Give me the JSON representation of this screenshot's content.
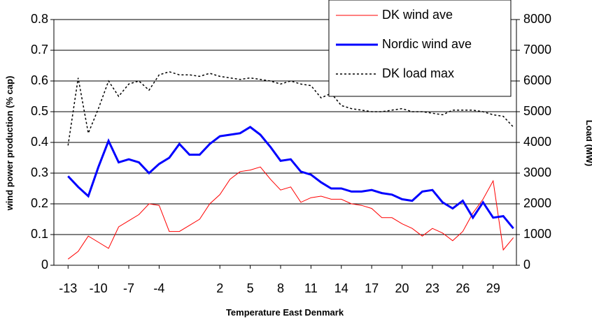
{
  "chart_data": {
    "type": "line",
    "x_label": "Temperature East Denmark",
    "y_label": "wind power production (% cap)",
    "y2_label": "Load (MW)",
    "x": [
      -13,
      -12,
      -11,
      -10,
      -9,
      -8,
      -7,
      -6,
      -5,
      -4,
      -3,
      -2,
      -1,
      0,
      1,
      2,
      3,
      4,
      5,
      6,
      7,
      8,
      9,
      10,
      11,
      12,
      13,
      14,
      15,
      16,
      17,
      18,
      19,
      20,
      21,
      22,
      23,
      24,
      25,
      26,
      27,
      28,
      29,
      30,
      31
    ],
    "xlim": [
      -14.4,
      31.3
    ],
    "xticks": [
      -13,
      -10,
      -7,
      -4,
      2,
      5,
      8,
      11,
      14,
      17,
      20,
      23,
      26,
      29
    ],
    "ylim": [
      0,
      0.8
    ],
    "yticks": [
      0,
      0.1,
      0.2,
      0.3,
      0.4,
      0.5,
      0.6,
      0.7,
      0.8
    ],
    "y2lim": [
      0,
      8000
    ],
    "y2ticks": [
      0,
      1000,
      2000,
      3000,
      4000,
      5000,
      6000,
      7000,
      8000
    ],
    "grid": true,
    "legend": "top-right",
    "series": [
      {
        "name": "DK wind ave",
        "color": "#ff0000",
        "width": 1,
        "dash": false,
        "values": [
          0.02,
          0.045,
          0.095,
          0.075,
          0.055,
          0.125,
          0.145,
          0.165,
          0.2,
          0.195,
          0.11,
          0.11,
          0.13,
          0.15,
          0.2,
          0.23,
          0.28,
          0.305,
          0.31,
          0.32,
          0.28,
          0.245,
          0.255,
          0.205,
          0.22,
          0.225,
          0.215,
          0.215,
          0.2,
          0.195,
          0.185,
          0.155,
          0.155,
          0.135,
          0.12,
          0.095,
          0.12,
          0.105,
          0.08,
          0.11,
          0.17,
          0.215,
          0.275,
          0.05,
          0.09
        ]
      },
      {
        "name": "Nordic wind ave",
        "color": "#0000ff",
        "width": 3,
        "dash": false,
        "values": [
          0.29,
          0.255,
          0.225,
          0.32,
          0.405,
          0.335,
          0.345,
          0.335,
          0.3,
          0.33,
          0.35,
          0.395,
          0.36,
          0.36,
          0.395,
          0.42,
          0.425,
          0.43,
          0.45,
          0.425,
          0.385,
          0.34,
          0.345,
          0.305,
          0.295,
          0.27,
          0.25,
          0.25,
          0.24,
          0.24,
          0.245,
          0.235,
          0.23,
          0.215,
          0.21,
          0.24,
          0.245,
          0.205,
          0.185,
          0.21,
          0.155,
          0.205,
          0.155,
          0.16,
          0.12
        ]
      },
      {
        "name": "DK load max",
        "color": "#000000",
        "width": 1.5,
        "dash": true,
        "axis": "y2",
        "values": [
          3900,
          6100,
          4300,
          5100,
          6000,
          5500,
          5900,
          6000,
          5700,
          6200,
          6300,
          6200,
          6200,
          6150,
          6250,
          6150,
          6100,
          6050,
          6100,
          6050,
          6000,
          5900,
          6000,
          5900,
          5850,
          5450,
          5600,
          5200,
          5100,
          5050,
          5000,
          5000,
          5050,
          5100,
          5000,
          5000,
          4950,
          4900,
          5050,
          5050,
          5050,
          5000,
          4900,
          4850,
          4500
        ]
      }
    ]
  }
}
